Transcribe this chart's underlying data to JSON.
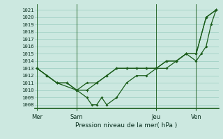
{
  "xlabel": "Pression niveau de la mer( hPa )",
  "ylim_min": 1007.5,
  "ylim_max": 1021.8,
  "background_color": "#cce8e0",
  "grid_color": "#99ccc0",
  "line_color": "#1a5c1a",
  "day_labels": [
    "Mer",
    "Sam",
    "Jeu",
    "Ven"
  ],
  "line_A_x": [
    0,
    2,
    4,
    8,
    10,
    11,
    12,
    13,
    14,
    16,
    18,
    20,
    22,
    24,
    26,
    28,
    30,
    32,
    33,
    34,
    35,
    36
  ],
  "line_A_y": [
    1013,
    1012,
    1011,
    1010,
    1009,
    1008,
    1008,
    1009,
    1008,
    1009,
    1011,
    1012,
    1012,
    1013,
    1013,
    1014,
    1015,
    1014,
    1015,
    1016,
    1019,
    1021
  ],
  "line_B_x": [
    0,
    2,
    4,
    6,
    8,
    10,
    12,
    14,
    16,
    18,
    20,
    22,
    24,
    26,
    28,
    30,
    32,
    34,
    36
  ],
  "line_B_y": [
    1013,
    1012,
    1011,
    1011,
    1010,
    1010,
    1011,
    1012,
    1013,
    1013,
    1013,
    1013,
    1013,
    1014,
    1014,
    1015,
    1015,
    1020,
    1021
  ],
  "line_C_x": [
    0,
    2,
    4,
    6,
    8,
    10,
    12,
    14,
    16,
    18,
    20,
    22,
    24,
    26,
    28,
    30,
    32,
    34,
    36
  ],
  "line_C_y": [
    1013,
    1012,
    1011,
    1011,
    1010,
    1011,
    1011,
    1012,
    1013,
    1013,
    1013,
    1013,
    1013,
    1014,
    1014,
    1015,
    1015,
    1020,
    1021
  ],
  "figwidth": 3.2,
  "figheight": 2.0,
  "dpi": 100
}
